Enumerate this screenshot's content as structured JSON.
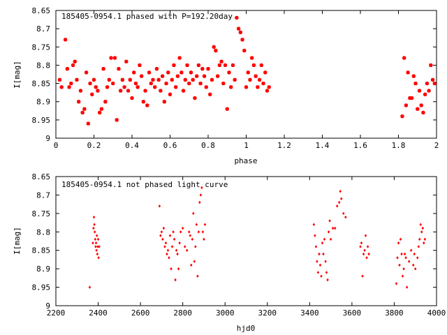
{
  "chart_data": [
    {
      "type": "scatter",
      "title": "185405-0954.1 phased with P=192.20day",
      "xlabel": "phase",
      "ylabel": "I[mag]",
      "xlim": [
        0,
        2
      ],
      "ylim": [
        8.65,
        9
      ],
      "y_inverted": true,
      "xticks": [
        0,
        0.2,
        0.4,
        0.6,
        0.8,
        1,
        1.2,
        1.4,
        1.6,
        1.8,
        2
      ],
      "xtick_labels": [
        "0",
        "0.2",
        "0.4",
        "0.6",
        "0.8",
        "1",
        "1.2",
        "1.4",
        "1.6",
        "1.8",
        "2"
      ],
      "yticks": [
        8.65,
        8.7,
        8.75,
        8.8,
        8.85,
        8.9,
        8.95,
        9
      ],
      "ytick_labels": [
        "8.65",
        "8.7",
        "8.75",
        "8.8",
        "8.85",
        "8.9",
        "8.95",
        "9"
      ],
      "grid": false,
      "marker_color": "#ff0000",
      "points": [
        [
          0.02,
          8.84
        ],
        [
          0.03,
          8.86
        ],
        [
          0.05,
          8.73
        ],
        [
          0.06,
          8.81
        ],
        [
          0.07,
          8.86
        ],
        [
          0.08,
          8.85
        ],
        [
          0.09,
          8.8
        ],
        [
          0.1,
          8.79
        ],
        [
          0.11,
          8.84
        ],
        [
          0.12,
          8.9
        ],
        [
          0.13,
          8.87
        ],
        [
          0.14,
          8.93
        ],
        [
          0.15,
          8.92
        ],
        [
          0.16,
          8.82
        ],
        [
          0.17,
          8.96
        ],
        [
          0.18,
          8.85
        ],
        [
          0.19,
          8.88
        ],
        [
          0.2,
          8.84
        ],
        [
          0.21,
          8.86
        ],
        [
          0.22,
          8.87
        ],
        [
          0.23,
          8.93
        ],
        [
          0.24,
          8.92
        ],
        [
          0.25,
          8.81
        ],
        [
          0.26,
          8.9
        ],
        [
          0.27,
          8.86
        ],
        [
          0.28,
          8.84
        ],
        [
          0.29,
          8.78
        ],
        [
          0.3,
          8.85
        ],
        [
          0.31,
          8.78
        ],
        [
          0.32,
          8.95
        ],
        [
          0.33,
          8.81
        ],
        [
          0.34,
          8.87
        ],
        [
          0.35,
          8.84
        ],
        [
          0.36,
          8.86
        ],
        [
          0.37,
          8.79
        ],
        [
          0.38,
          8.87
        ],
        [
          0.39,
          8.84
        ],
        [
          0.4,
          8.89
        ],
        [
          0.41,
          8.82
        ],
        [
          0.42,
          8.85
        ],
        [
          0.43,
          8.86
        ],
        [
          0.44,
          8.8
        ],
        [
          0.45,
          8.83
        ],
        [
          0.46,
          8.9
        ],
        [
          0.47,
          8.87
        ],
        [
          0.48,
          8.91
        ],
        [
          0.49,
          8.82
        ],
        [
          0.5,
          8.85
        ],
        [
          0.51,
          8.84
        ],
        [
          0.52,
          8.86
        ],
        [
          0.53,
          8.81
        ],
        [
          0.54,
          8.84
        ],
        [
          0.55,
          8.87
        ],
        [
          0.56,
          8.83
        ],
        [
          0.57,
          8.9
        ],
        [
          0.58,
          8.85
        ],
        [
          0.59,
          8.82
        ],
        [
          0.6,
          8.88
        ],
        [
          0.61,
          8.84
        ],
        [
          0.62,
          8.8
        ],
        [
          0.63,
          8.86
        ],
        [
          0.64,
          8.83
        ],
        [
          0.65,
          8.78
        ],
        [
          0.66,
          8.82
        ],
        [
          0.67,
          8.87
        ],
        [
          0.68,
          8.84
        ],
        [
          0.69,
          8.8
        ],
        [
          0.7,
          8.85
        ],
        [
          0.71,
          8.82
        ],
        [
          0.72,
          8.84
        ],
        [
          0.73,
          8.89
        ],
        [
          0.74,
          8.83
        ],
        [
          0.75,
          8.8
        ],
        [
          0.76,
          8.85
        ],
        [
          0.77,
          8.81
        ],
        [
          0.78,
          8.83
        ],
        [
          0.79,
          8.86
        ],
        [
          0.8,
          8.81
        ],
        [
          0.81,
          8.88
        ],
        [
          0.82,
          8.84
        ],
        [
          0.83,
          8.75
        ],
        [
          0.84,
          8.76
        ],
        [
          0.85,
          8.83
        ],
        [
          0.86,
          8.8
        ],
        [
          0.87,
          8.79
        ],
        [
          0.88,
          8.85
        ],
        [
          0.89,
          8.8
        ],
        [
          0.9,
          8.92
        ],
        [
          0.91,
          8.82
        ],
        [
          0.92,
          8.86
        ],
        [
          0.93,
          8.8
        ],
        [
          0.94,
          8.84
        ],
        [
          0.95,
          8.67
        ],
        [
          0.96,
          8.7
        ],
        [
          0.97,
          8.71
        ],
        [
          0.98,
          8.73
        ],
        [
          0.99,
          8.76
        ],
        [
          1.0,
          8.86
        ],
        [
          1.01,
          8.82
        ],
        [
          1.02,
          8.84
        ],
        [
          1.03,
          8.78
        ],
        [
          1.04,
          8.8
        ],
        [
          1.05,
          8.83
        ],
        [
          1.06,
          8.86
        ],
        [
          1.07,
          8.84
        ],
        [
          1.08,
          8.8
        ],
        [
          1.09,
          8.85
        ],
        [
          1.1,
          8.82
        ],
        [
          1.11,
          8.87
        ],
        [
          1.12,
          8.86
        ],
        [
          1.82,
          8.94
        ],
        [
          1.83,
          8.78
        ],
        [
          1.84,
          8.91
        ],
        [
          1.85,
          8.82
        ],
        [
          1.86,
          8.89
        ],
        [
          1.87,
          8.89
        ],
        [
          1.88,
          8.83
        ],
        [
          1.89,
          8.85
        ],
        [
          1.9,
          8.92
        ],
        [
          1.91,
          8.87
        ],
        [
          1.92,
          8.91
        ],
        [
          1.93,
          8.93
        ],
        [
          1.94,
          8.88
        ],
        [
          1.95,
          8.85
        ],
        [
          1.96,
          8.87
        ],
        [
          1.97,
          8.8
        ],
        [
          1.98,
          8.84
        ],
        [
          1.99,
          8.85
        ]
      ]
    },
    {
      "type": "scatter",
      "title": "185405-0954.1 not phased light curve",
      "xlabel": "hjd0",
      "ylabel": "I[mag]",
      "xlim": [
        2200,
        4000
      ],
      "ylim": [
        8.65,
        9
      ],
      "y_inverted": true,
      "xticks": [
        2200,
        2400,
        2600,
        2800,
        3000,
        3200,
        3400,
        3600,
        3800,
        4000
      ],
      "xtick_labels": [
        "2200",
        "2400",
        "2600",
        "2800",
        "3000",
        "3200",
        "3400",
        "3600",
        "3800",
        "4000"
      ],
      "yticks": [
        8.65,
        8.7,
        8.75,
        8.8,
        8.85,
        8.9,
        8.95,
        9
      ],
      "ytick_labels": [
        "8.65",
        "8.7",
        "8.75",
        "8.8",
        "8.85",
        "8.9",
        "8.95",
        "9"
      ],
      "grid": false,
      "marker_color": "#ff0000",
      "points": [
        [
          2360,
          8.95
        ],
        [
          2375,
          8.83
        ],
        [
          2378,
          8.79
        ],
        [
          2380,
          8.76
        ],
        [
          2382,
          8.78
        ],
        [
          2384,
          8.8
        ],
        [
          2386,
          8.82
        ],
        [
          2388,
          8.84
        ],
        [
          2390,
          8.83
        ],
        [
          2392,
          8.85
        ],
        [
          2394,
          8.81
        ],
        [
          2396,
          8.86
        ],
        [
          2398,
          8.84
        ],
        [
          2400,
          8.82
        ],
        [
          2402,
          8.87
        ],
        [
          2405,
          8.84
        ],
        [
          2690,
          8.73
        ],
        [
          2695,
          8.81
        ],
        [
          2700,
          8.8
        ],
        [
          2705,
          8.82
        ],
        [
          2710,
          8.79
        ],
        [
          2715,
          8.84
        ],
        [
          2720,
          8.83
        ],
        [
          2725,
          8.86
        ],
        [
          2730,
          8.85
        ],
        [
          2735,
          8.87
        ],
        [
          2740,
          8.81
        ],
        [
          2745,
          8.9
        ],
        [
          2750,
          8.84
        ],
        [
          2755,
          8.8
        ],
        [
          2760,
          8.82
        ],
        [
          2765,
          8.93
        ],
        [
          2770,
          8.85
        ],
        [
          2775,
          8.86
        ],
        [
          2780,
          8.9
        ],
        [
          2785,
          8.83
        ],
        [
          2790,
          8.8
        ],
        [
          2800,
          8.79
        ],
        [
          2810,
          8.84
        ],
        [
          2820,
          8.85
        ],
        [
          2830,
          8.8
        ],
        [
          2835,
          8.81
        ],
        [
          2840,
          8.89
        ],
        [
          2845,
          8.82
        ],
        [
          2850,
          8.75
        ],
        [
          2855,
          8.88
        ],
        [
          2860,
          8.84
        ],
        [
          2865,
          8.78
        ],
        [
          2870,
          8.92
        ],
        [
          2875,
          8.8
        ],
        [
          2880,
          8.72
        ],
        [
          2885,
          8.7
        ],
        [
          2890,
          8.68
        ],
        [
          2895,
          8.8
        ],
        [
          2900,
          8.82
        ],
        [
          2905,
          8.78
        ],
        [
          3420,
          8.78
        ],
        [
          3425,
          8.81
        ],
        [
          3430,
          8.84
        ],
        [
          3435,
          8.88
        ],
        [
          3440,
          8.91
        ],
        [
          3445,
          8.86
        ],
        [
          3450,
          8.89
        ],
        [
          3455,
          8.92
        ],
        [
          3460,
          8.83
        ],
        [
          3465,
          8.86
        ],
        [
          3470,
          8.82
        ],
        [
          3475,
          8.88
        ],
        [
          3480,
          8.91
        ],
        [
          3485,
          8.93
        ],
        [
          3490,
          8.8
        ],
        [
          3495,
          8.77
        ],
        [
          3500,
          8.82
        ],
        [
          3510,
          8.79
        ],
        [
          3520,
          8.79
        ],
        [
          3530,
          8.73
        ],
        [
          3540,
          8.72
        ],
        [
          3545,
          8.69
        ],
        [
          3550,
          8.71
        ],
        [
          3560,
          8.75
        ],
        [
          3570,
          8.76
        ],
        [
          3640,
          8.84
        ],
        [
          3645,
          8.83
        ],
        [
          3650,
          8.92
        ],
        [
          3655,
          8.86
        ],
        [
          3660,
          8.85
        ],
        [
          3665,
          8.81
        ],
        [
          3670,
          8.87
        ],
        [
          3675,
          8.84
        ],
        [
          3680,
          8.86
        ],
        [
          3810,
          8.94
        ],
        [
          3815,
          8.87
        ],
        [
          3820,
          8.83
        ],
        [
          3825,
          8.89
        ],
        [
          3830,
          8.82
        ],
        [
          3835,
          8.86
        ],
        [
          3840,
          8.92
        ],
        [
          3845,
          8.9
        ],
        [
          3850,
          8.86
        ],
        [
          3855,
          8.87
        ],
        [
          3860,
          8.95
        ],
        [
          3870,
          8.88
        ],
        [
          3880,
          8.85
        ],
        [
          3890,
          8.89
        ],
        [
          3895,
          8.86
        ],
        [
          3900,
          8.9
        ],
        [
          3910,
          8.87
        ],
        [
          3915,
          8.84
        ],
        [
          3920,
          8.82
        ],
        [
          3925,
          8.78
        ],
        [
          3930,
          8.8
        ],
        [
          3935,
          8.79
        ],
        [
          3940,
          8.83
        ],
        [
          3945,
          8.82
        ]
      ]
    }
  ]
}
